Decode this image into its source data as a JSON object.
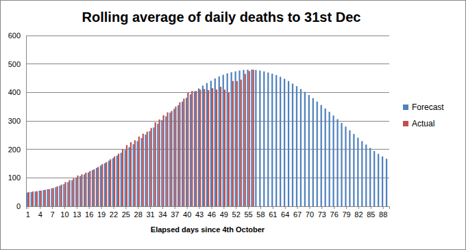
{
  "chart_data": {
    "type": "bar",
    "title": "Rolling average of daily deaths to 31st Dec",
    "x_label": "Elapsed days since 4th October",
    "categories": [
      "1",
      null,
      null,
      "4",
      null,
      null,
      "7",
      null,
      null,
      "10",
      null,
      null,
      "13",
      null,
      null,
      "16",
      null,
      null,
      "19",
      null,
      null,
      "22",
      null,
      null,
      "25",
      null,
      null,
      "28",
      null,
      null,
      "31",
      null,
      null,
      "34",
      null,
      null,
      "37",
      null,
      null,
      "40",
      null,
      null,
      "43",
      null,
      null,
      "46",
      null,
      null,
      "49",
      null,
      null,
      "52",
      null,
      null,
      "55",
      null,
      null,
      "58",
      null,
      null,
      "61",
      null,
      null,
      "64",
      null,
      null,
      "67",
      null,
      null,
      "70",
      null,
      null,
      "73",
      null,
      null,
      "76",
      null,
      null,
      "79",
      null,
      null,
      "82",
      null,
      null,
      "85",
      null,
      null,
      "88",
      null
    ],
    "series": [
      {
        "name": "Forecast",
        "color": "#4f81bd",
        "values": [
          48,
          50,
          52,
          55,
          57,
          60,
          63,
          67,
          72,
          78,
          85,
          92,
          100,
          106,
          112,
          119,
          127,
          135,
          143,
          151,
          160,
          169,
          178,
          188,
          198,
          208,
          218,
          229,
          240,
          252,
          264,
          277,
          290,
          303,
          316,
          329,
          342,
          355,
          368,
          381,
          393,
          404,
          414,
          424,
          433,
          441,
          449,
          456,
          462,
          467,
          471,
          474,
          477,
          479,
          480,
          480,
          479,
          477,
          474,
          470,
          466,
          461,
          455,
          448,
          440,
          431,
          422,
          412,
          402,
          391,
          380,
          368,
          356,
          344,
          332,
          319,
          306,
          293,
          280,
          267,
          254,
          241,
          229,
          217,
          205,
          194,
          184,
          175,
          167
        ]
      },
      {
        "name": "Actual",
        "color": "#c0504d",
        "values": [
          50,
          52,
          53,
          55,
          58,
          60,
          64,
          70,
          76,
          85,
          92,
          98,
          108,
          112,
          118,
          124,
          130,
          138,
          148,
          155,
          165,
          175,
          185,
          200,
          215,
          225,
          232,
          245,
          255,
          262,
          275,
          295,
          305,
          320,
          330,
          335,
          350,
          365,
          378,
          400,
          405,
          405,
          410,
          412,
          408,
          415,
          410,
          420,
          410,
          400,
          440,
          440,
          445,
          465,
          475,
          480,
          null,
          null,
          null,
          null,
          null,
          null,
          null,
          null,
          null,
          null,
          null,
          null,
          null,
          null,
          null,
          null,
          null,
          null,
          null,
          null,
          null,
          null,
          null,
          null,
          null,
          null,
          null,
          null,
          null,
          null,
          null,
          null,
          null
        ]
      }
    ],
    "ylim": [
      0,
      600
    ],
    "yticks": [
      0,
      100,
      200,
      300,
      400,
      500,
      600
    ],
    "grid": true,
    "legend": "right"
  }
}
